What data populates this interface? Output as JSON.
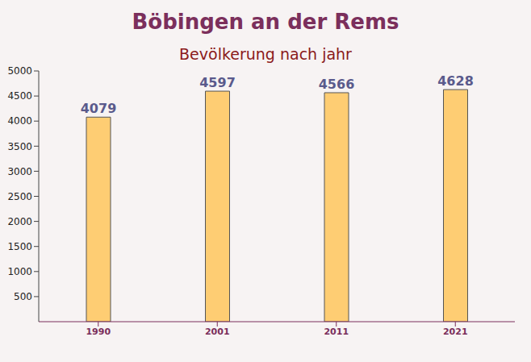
{
  "chart_data": {
    "type": "bar",
    "title": "Böbingen an der Rems",
    "subtitle": "Bevölkerung nach jahr",
    "categories": [
      "1990",
      "2001",
      "2011",
      "2021"
    ],
    "values": [
      4079,
      4597,
      4566,
      4628
    ],
    "color": "#ffc65c",
    "ylim": [
      0,
      5000
    ],
    "yticks": [
      500,
      1000,
      1500,
      2000,
      2500,
      3000,
      3500,
      4000,
      4500,
      5000
    ],
    "grid": false,
    "data_labels": true
  }
}
